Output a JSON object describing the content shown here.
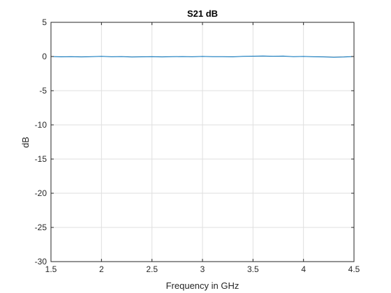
{
  "chart_data": {
    "type": "line",
    "title": "S21 dB",
    "xlabel": "Frequency in GHz",
    "ylabel": "dB",
    "xlim": [
      1.5,
      4.5
    ],
    "ylim": [
      -30,
      5
    ],
    "xticks": [
      1.5,
      2,
      2.5,
      3,
      3.5,
      4,
      4.5
    ],
    "xtick_labels": [
      "1.5",
      "2",
      "2.5",
      "3",
      "3.5",
      "4",
      "4.5"
    ],
    "yticks": [
      5,
      0,
      -5,
      -10,
      -15,
      -20,
      -25,
      -30
    ],
    "ytick_labels": [
      "5",
      "0",
      "-5",
      "-10",
      "-15",
      "-20",
      "-25",
      "-30"
    ],
    "grid": true,
    "series": [
      {
        "color": "#0072BD",
        "x": [
          1.5,
          1.6,
          1.7,
          1.8,
          1.9,
          2.0,
          2.1,
          2.2,
          2.3,
          2.4,
          2.5,
          2.6,
          2.7,
          2.8,
          2.9,
          3.0,
          3.1,
          3.2,
          3.3,
          3.4,
          3.5,
          3.6,
          3.7,
          3.8,
          3.9,
          4.0,
          4.1,
          4.2,
          4.3,
          4.4,
          4.5
        ],
        "y": [
          0.0,
          -0.05,
          -0.02,
          -0.06,
          -0.03,
          0.02,
          -0.04,
          -0.01,
          -0.07,
          -0.05,
          -0.02,
          -0.06,
          -0.03,
          -0.01,
          -0.04,
          0.01,
          -0.03,
          -0.02,
          -0.05,
          0.02,
          0.05,
          0.08,
          0.04,
          0.06,
          -0.02,
          0.01,
          -0.04,
          -0.06,
          -0.12,
          -0.08,
          0.0
        ]
      }
    ]
  }
}
